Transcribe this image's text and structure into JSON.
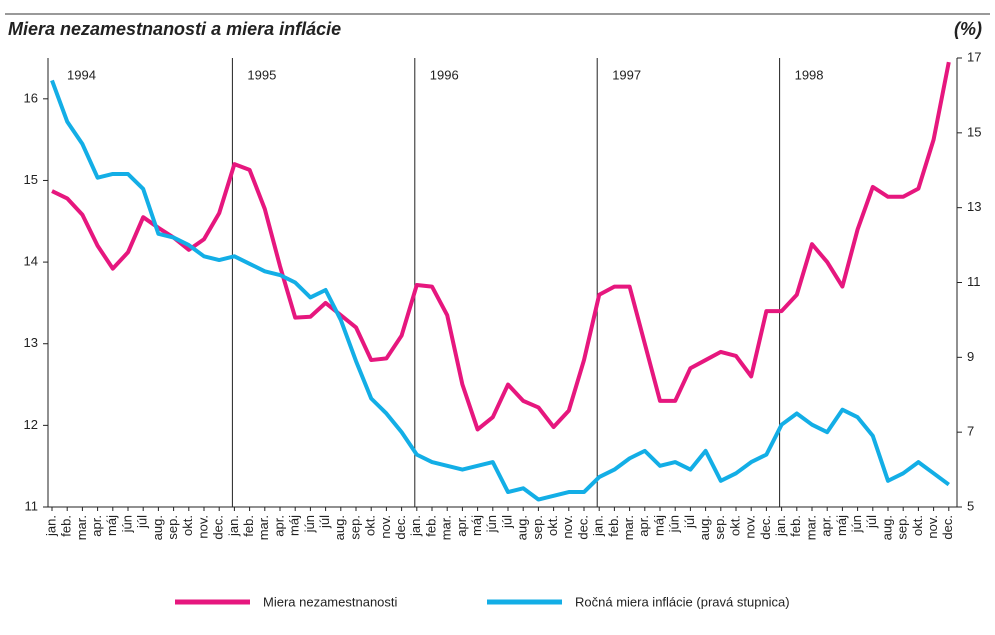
{
  "chart_data": {
    "type": "line",
    "title": "Miera nezamestnanosti a miera inflácie",
    "unit_label": "(%)",
    "categories": [
      "jan.",
      "feb.",
      "mar.",
      "apr.",
      "máj",
      "jún",
      "júl",
      "aug.",
      "sep.",
      "okt.",
      "nov.",
      "dec.",
      "jan.",
      "feb.",
      "mar.",
      "apr.",
      "máj",
      "jún",
      "júl",
      "aug.",
      "sep.",
      "okt.",
      "nov.",
      "dec.",
      "jan.",
      "feb.",
      "mar.",
      "apr.",
      "máj",
      "jún",
      "júl",
      "aug.",
      "sep.",
      "okt.",
      "nov.",
      "dec.",
      "jan.",
      "feb.",
      "mar.",
      "apr.",
      "máj",
      "jún",
      "júl",
      "aug.",
      "sep.",
      "okt.",
      "nov.",
      "dec.",
      "jan.",
      "feb.",
      "mar.",
      "apr.",
      "máj",
      "jún",
      "júl",
      "aug.",
      "sep.",
      "okt.",
      "nov.",
      "dec."
    ],
    "years": [
      "1994",
      "1995",
      "1996",
      "1997",
      "1998"
    ],
    "series": [
      {
        "name": "Miera nezamestnanosti",
        "color": "#e6177e",
        "axis": "y",
        "values": [
          14.87,
          14.78,
          14.58,
          14.2,
          13.92,
          14.12,
          14.55,
          14.42,
          14.3,
          14.15,
          14.28,
          14.6,
          15.2,
          15.13,
          14.65,
          13.95,
          13.32,
          13.33,
          13.5,
          13.35,
          13.2,
          12.8,
          12.82,
          13.1,
          13.72,
          13.7,
          13.35,
          12.5,
          11.95,
          12.1,
          12.5,
          12.3,
          12.22,
          11.98,
          12.18,
          12.8,
          13.6,
          13.7,
          13.7,
          13.0,
          12.3,
          12.3,
          12.7,
          12.8,
          12.9,
          12.85,
          12.6,
          13.4,
          13.4,
          13.6,
          14.22,
          14.0,
          13.7,
          14.4,
          14.92,
          14.8,
          14.8,
          14.9,
          15.5,
          16.45
        ]
      },
      {
        "name": "Ročná miera inflácie (pravá stupnica)",
        "color": "#13aee6",
        "axis": "y2",
        "values": [
          16.4,
          15.3,
          14.7,
          13.8,
          13.9,
          13.9,
          13.5,
          12.3,
          12.2,
          12.0,
          11.7,
          11.6,
          11.7,
          11.5,
          11.3,
          11.2,
          11.0,
          10.6,
          10.8,
          10.0,
          8.9,
          7.9,
          7.5,
          7.0,
          6.4,
          6.2,
          6.1,
          6.0,
          6.1,
          6.2,
          5.4,
          5.5,
          5.2,
          5.3,
          5.4,
          5.4,
          5.8,
          6.0,
          6.3,
          6.5,
          6.1,
          6.2,
          6.0,
          6.5,
          5.7,
          5.9,
          6.2,
          6.4,
          7.2,
          7.5,
          7.2,
          7.0,
          7.6,
          7.4,
          6.9,
          5.7,
          5.9,
          6.2,
          5.9,
          5.6
        ]
      }
    ],
    "ylim": [
      11,
      16.5
    ],
    "yticks": [
      11,
      12,
      13,
      14,
      15,
      16
    ],
    "y2lim": [
      5,
      17
    ],
    "y2ticks": [
      5,
      7,
      9,
      11,
      13,
      15,
      17
    ]
  }
}
